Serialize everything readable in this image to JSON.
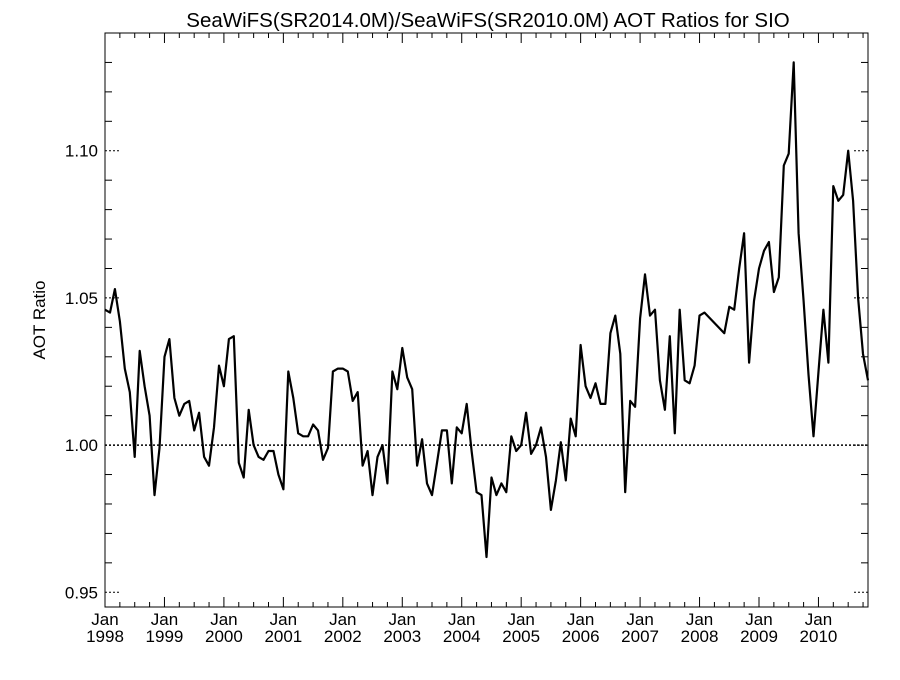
{
  "chart_data": {
    "type": "line",
    "title": "SeaWiFS(SR2014.0M)/SeaWiFS(SR2010.0M)  AOT Ratios for SIO",
    "xlabel": "",
    "ylabel": "AOT Ratio",
    "ylim": [
      0.945,
      1.14
    ],
    "xlim": [
      "1998-01",
      "2010-11"
    ],
    "grid": false,
    "reference_line": {
      "y": 1.0,
      "style": "dotted"
    },
    "y_ticks": [
      {
        "value": 0.95,
        "label": "0.95"
      },
      {
        "value": 1.0,
        "label": "1.00"
      },
      {
        "value": 1.05,
        "label": "1.05"
      },
      {
        "value": 1.1,
        "label": "1.10"
      }
    ],
    "x_ticks": [
      {
        "date": "1998-01",
        "month": "Jan",
        "year": "1998"
      },
      {
        "date": "1999-01",
        "month": "Jan",
        "year": "1999"
      },
      {
        "date": "2000-01",
        "month": "Jan",
        "year": "2000"
      },
      {
        "date": "2001-01",
        "month": "Jan",
        "year": "2001"
      },
      {
        "date": "2002-01",
        "month": "Jan",
        "year": "2002"
      },
      {
        "date": "2003-01",
        "month": "Jan",
        "year": "2003"
      },
      {
        "date": "2004-01",
        "month": "Jan",
        "year": "2004"
      },
      {
        "date": "2005-01",
        "month": "Jan",
        "year": "2005"
      },
      {
        "date": "2006-01",
        "month": "Jan",
        "year": "2006"
      },
      {
        "date": "2007-01",
        "month": "Jan",
        "year": "2007"
      },
      {
        "date": "2008-01",
        "month": "Jan",
        "year": "2008"
      },
      {
        "date": "2009-01",
        "month": "Jan",
        "year": "2009"
      },
      {
        "date": "2010-01",
        "month": "Jan",
        "year": "2010"
      }
    ],
    "series": [
      {
        "color": "#000000",
        "points": [
          [
            "1998-01",
            1.046
          ],
          [
            "1998-02",
            1.045
          ],
          [
            "1998-03",
            1.053
          ],
          [
            "1998-04",
            1.042
          ],
          [
            "1998-05",
            1.026
          ],
          [
            "1998-06",
            1.018
          ],
          [
            "1998-07",
            0.996
          ],
          [
            "1998-08",
            1.032
          ],
          [
            "1998-09",
            1.02
          ],
          [
            "1998-10",
            1.01
          ],
          [
            "1998-11",
            0.983
          ],
          [
            "1998-12",
            0.999
          ],
          [
            "1999-01",
            1.03
          ],
          [
            "1999-02",
            1.036
          ],
          [
            "1999-03",
            1.016
          ],
          [
            "1999-04",
            1.01
          ],
          [
            "1999-05",
            1.014
          ],
          [
            "1999-06",
            1.015
          ],
          [
            "1999-07",
            1.005
          ],
          [
            "1999-08",
            1.011
          ],
          [
            "1999-09",
            0.996
          ],
          [
            "1999-10",
            0.993
          ],
          [
            "1999-11",
            1.006
          ],
          [
            "1999-12",
            1.027
          ],
          [
            "2000-01",
            1.02
          ],
          [
            "2000-02",
            1.036
          ],
          [
            "2000-03",
            1.037
          ],
          [
            "2000-04",
            0.994
          ],
          [
            "2000-05",
            0.989
          ],
          [
            "2000-06",
            1.012
          ],
          [
            "2000-07",
            1.0
          ],
          [
            "2000-08",
            0.996
          ],
          [
            "2000-09",
            0.995
          ],
          [
            "2000-10",
            0.998
          ],
          [
            "2000-11",
            0.998
          ],
          [
            "2000-12",
            0.99
          ],
          [
            "2001-01",
            0.985
          ],
          [
            "2001-02",
            1.025
          ],
          [
            "2001-03",
            1.016
          ],
          [
            "2001-04",
            1.004
          ],
          [
            "2001-05",
            1.003
          ],
          [
            "2001-06",
            1.003
          ],
          [
            "2001-07",
            1.007
          ],
          [
            "2001-08",
            1.005
          ],
          [
            "2001-09",
            0.995
          ],
          [
            "2001-10",
            0.999
          ],
          [
            "2001-11",
            1.025
          ],
          [
            "2001-12",
            1.026
          ],
          [
            "2002-01",
            1.026
          ],
          [
            "2002-02",
            1.025
          ],
          [
            "2002-03",
            1.015
          ],
          [
            "2002-04",
            1.018
          ],
          [
            "2002-05",
            0.993
          ],
          [
            "2002-06",
            0.998
          ],
          [
            "2002-07",
            0.983
          ],
          [
            "2002-08",
            0.996
          ],
          [
            "2002-09",
            1.0
          ],
          [
            "2002-10",
            0.987
          ],
          [
            "2002-11",
            1.025
          ],
          [
            "2002-12",
            1.019
          ],
          [
            "2003-01",
            1.033
          ],
          [
            "2003-02",
            1.023
          ],
          [
            "2003-03",
            1.019
          ],
          [
            "2003-04",
            0.993
          ],
          [
            "2003-05",
            1.002
          ],
          [
            "2003-06",
            0.987
          ],
          [
            "2003-07",
            0.983
          ],
          [
            "2003-08",
            0.994
          ],
          [
            "2003-09",
            1.005
          ],
          [
            "2003-10",
            1.005
          ],
          [
            "2003-11",
            0.987
          ],
          [
            "2003-12",
            1.006
          ],
          [
            "2004-01",
            1.004
          ],
          [
            "2004-02",
            1.014
          ],
          [
            "2004-03",
            0.998
          ],
          [
            "2004-04",
            0.984
          ],
          [
            "2004-05",
            0.983
          ],
          [
            "2004-06",
            0.962
          ],
          [
            "2004-07",
            0.989
          ],
          [
            "2004-08",
            0.983
          ],
          [
            "2004-09",
            0.987
          ],
          [
            "2004-10",
            0.984
          ],
          [
            "2004-11",
            1.003
          ],
          [
            "2004-12",
            0.998
          ],
          [
            "2005-01",
            1.0
          ],
          [
            "2005-02",
            1.011
          ],
          [
            "2005-03",
            0.997
          ],
          [
            "2005-04",
            1.0
          ],
          [
            "2005-05",
            1.006
          ],
          [
            "2005-06",
            0.996
          ],
          [
            "2005-07",
            0.978
          ],
          [
            "2005-08",
            0.988
          ],
          [
            "2005-09",
            1.001
          ],
          [
            "2005-10",
            0.988
          ],
          [
            "2005-11",
            1.009
          ],
          [
            "2005-12",
            1.003
          ],
          [
            "2006-01",
            1.034
          ],
          [
            "2006-02",
            1.02
          ],
          [
            "2006-03",
            1.016
          ],
          [
            "2006-04",
            1.021
          ],
          [
            "2006-05",
            1.014
          ],
          [
            "2006-06",
            1.014
          ],
          [
            "2006-07",
            1.038
          ],
          [
            "2006-08",
            1.044
          ],
          [
            "2006-09",
            1.031
          ],
          [
            "2006-10",
            0.984
          ],
          [
            "2006-11",
            1.015
          ],
          [
            "2006-12",
            1.013
          ],
          [
            "2007-01",
            1.043
          ],
          [
            "2007-02",
            1.058
          ],
          [
            "2007-03",
            1.044
          ],
          [
            "2007-04",
            1.046
          ],
          [
            "2007-05",
            1.022
          ],
          [
            "2007-06",
            1.012
          ],
          [
            "2007-07",
            1.037
          ],
          [
            "2007-08",
            1.004
          ],
          [
            "2007-09",
            1.046
          ],
          [
            "2007-10",
            1.022
          ],
          [
            "2007-11",
            1.021
          ],
          [
            "2007-12",
            1.027
          ],
          [
            "2008-01",
            1.044
          ],
          [
            "2008-02",
            1.045
          ],
          [
            "2008-06",
            1.038
          ],
          [
            "2008-07",
            1.047
          ],
          [
            "2008-08",
            1.046
          ],
          [
            "2008-09",
            1.06
          ],
          [
            "2008-10",
            1.072
          ],
          [
            "2008-11",
            1.028
          ],
          [
            "2008-12",
            1.049
          ],
          [
            "2009-01",
            1.06
          ],
          [
            "2009-02",
            1.066
          ],
          [
            "2009-03",
            1.069
          ],
          [
            "2009-04",
            1.052
          ],
          [
            "2009-05",
            1.057
          ],
          [
            "2009-06",
            1.095
          ],
          [
            "2009-07",
            1.099
          ],
          [
            "2009-08",
            1.13
          ],
          [
            "2009-09",
            1.072
          ],
          [
            "2009-10",
            1.049
          ],
          [
            "2009-11",
            1.024
          ],
          [
            "2009-12",
            1.003
          ],
          [
            "2010-01",
            1.025
          ],
          [
            "2010-02",
            1.046
          ],
          [
            "2010-03",
            1.028
          ],
          [
            "2010-04",
            1.088
          ],
          [
            "2010-05",
            1.083
          ],
          [
            "2010-06",
            1.085
          ],
          [
            "2010-07",
            1.1
          ],
          [
            "2010-08",
            1.083
          ],
          [
            "2010-09",
            1.05
          ],
          [
            "2010-10",
            1.031
          ],
          [
            "2010-11",
            1.022
          ]
        ]
      }
    ]
  }
}
